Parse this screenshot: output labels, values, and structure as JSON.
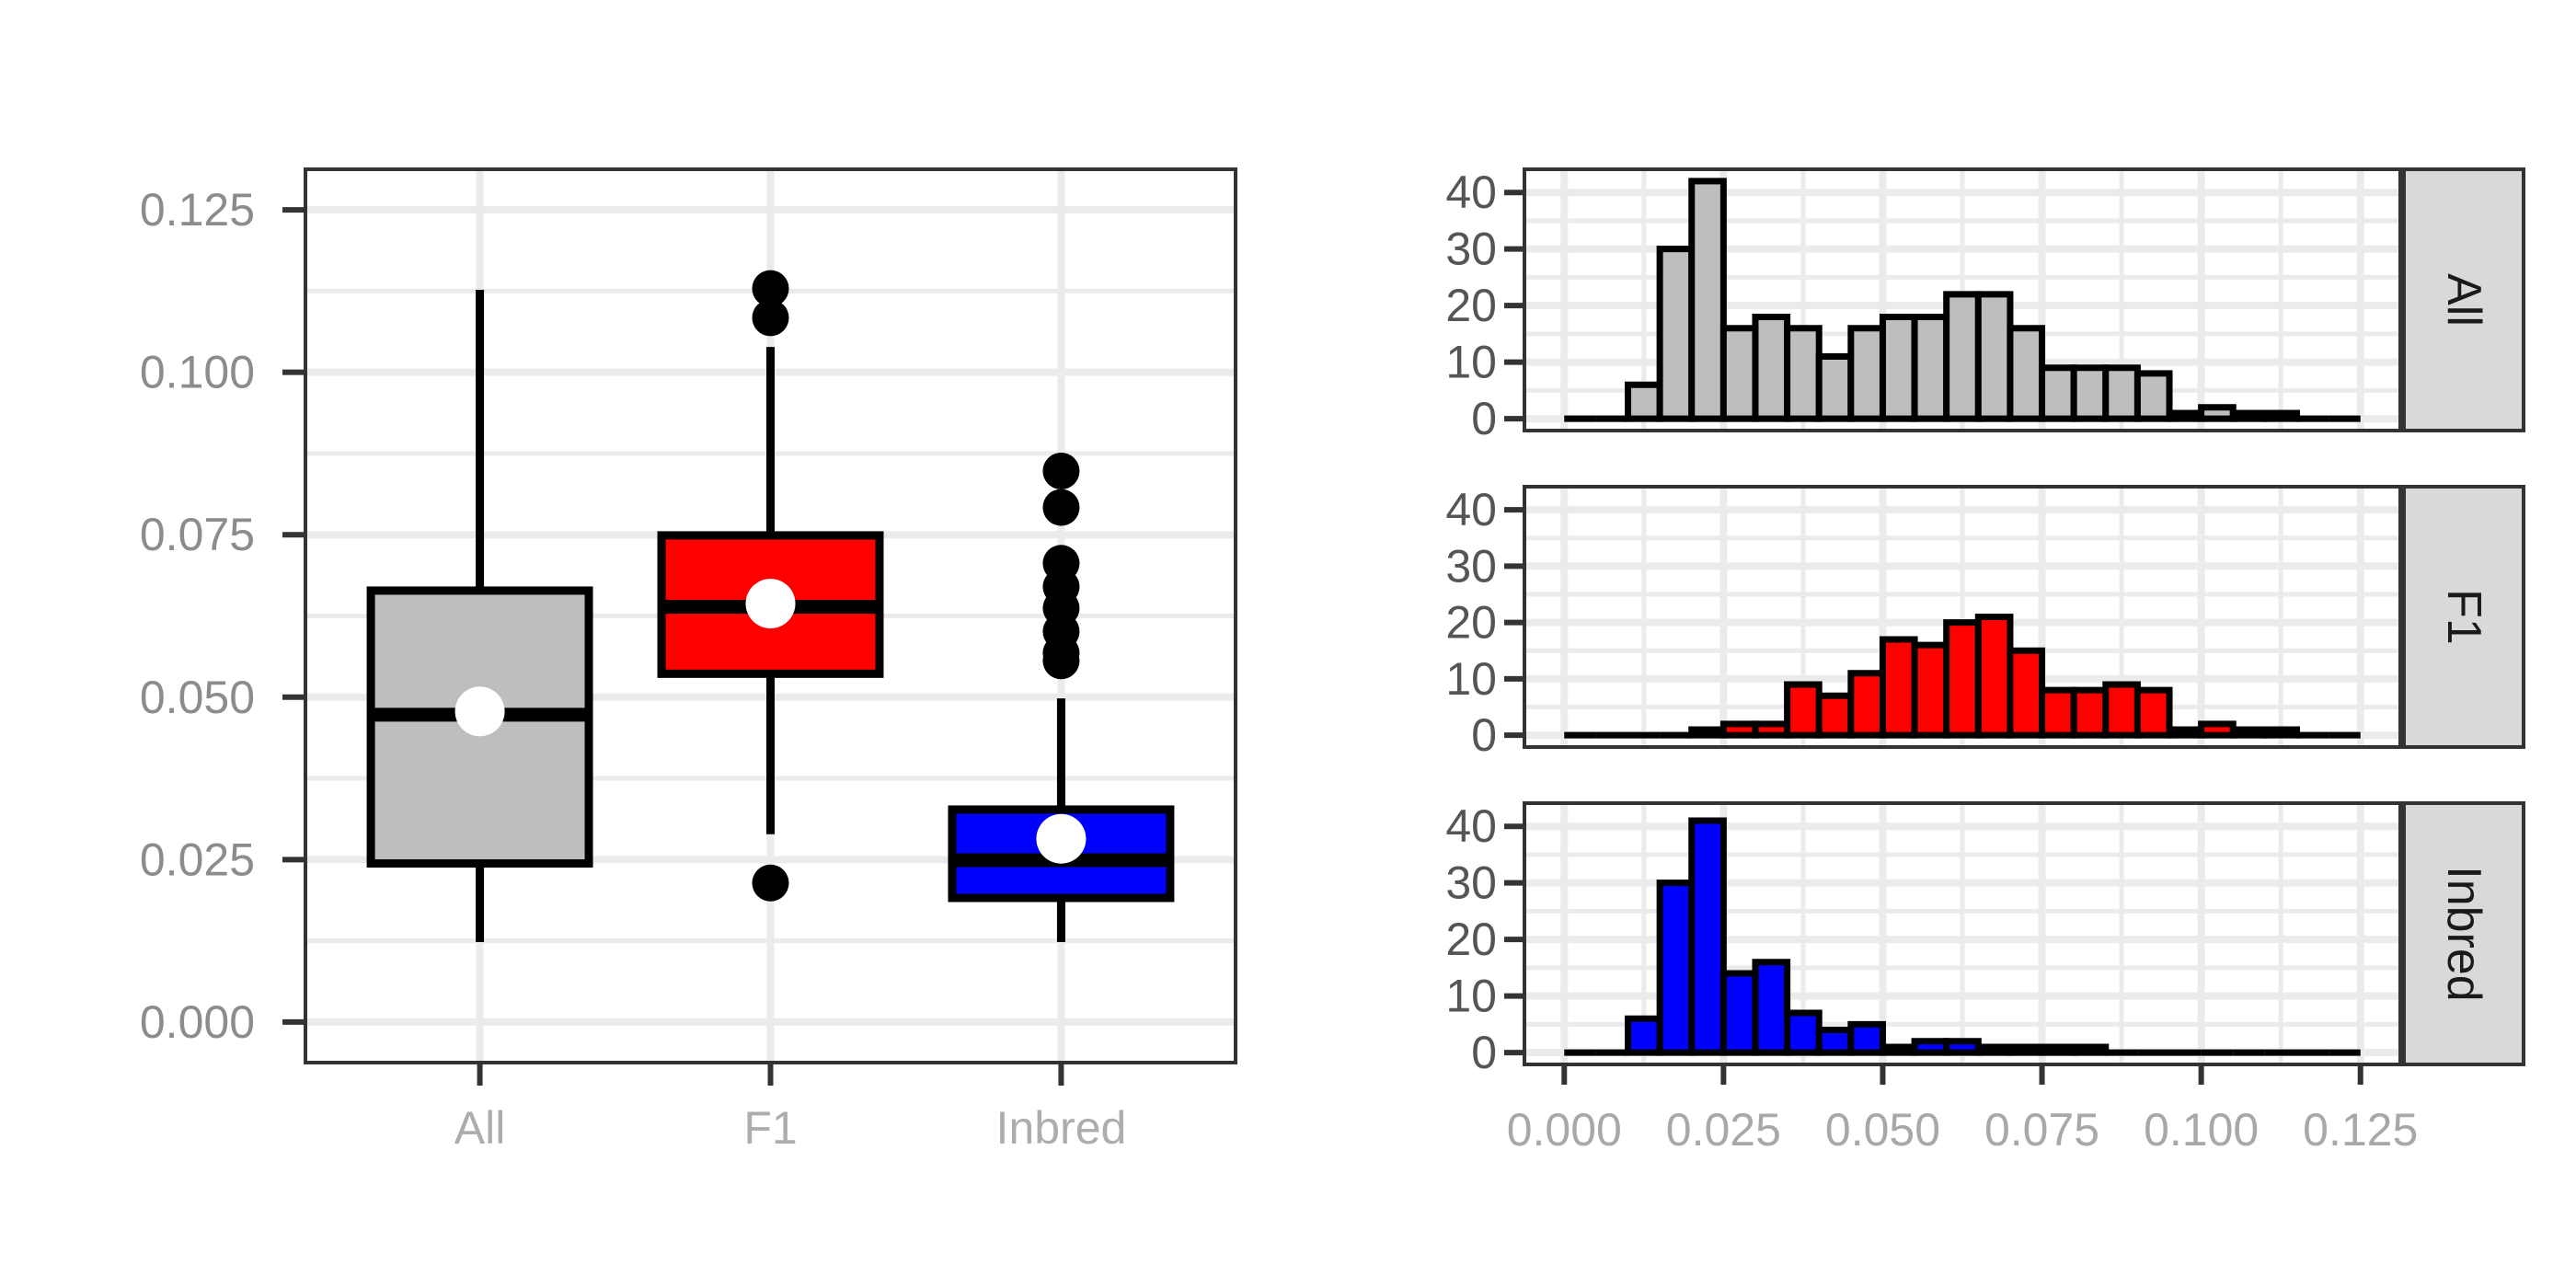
{
  "chart_data": [
    {
      "type": "boxplot",
      "categories": [
        "All",
        "F1",
        "Inbred"
      ],
      "yticks": [
        "0.000",
        "0.025",
        "0.050",
        "0.075",
        "0.100",
        "0.125"
      ],
      "ylim": [
        -0.00625,
        0.13125
      ],
      "grid": true,
      "boxes": [
        {
          "color": "#BEBEBE",
          "whisker_low": 0.0123,
          "q1": 0.0244,
          "median": 0.0473,
          "q3": 0.0664,
          "whisker_high": 0.1127,
          "mean": 0.0478,
          "outliers": []
        },
        {
          "color": "#FF0000",
          "whisker_low": 0.0289,
          "q1": 0.0536,
          "median": 0.0639,
          "q3": 0.0749,
          "whisker_high": 0.1039,
          "mean": 0.0644,
          "outliers": [
            0.1129,
            0.1084,
            0.0214
          ]
        },
        {
          "color": "#0000FF",
          "whisker_low": 0.0123,
          "q1": 0.0191,
          "median": 0.0249,
          "q3": 0.0327,
          "whisker_high": 0.0498,
          "mean": 0.0282,
          "outliers": [
            0.0848,
            0.0792,
            0.0706,
            0.067,
            0.0637,
            0.0601,
            0.0568,
            0.0556
          ]
        }
      ]
    },
    {
      "type": "histogram",
      "bin_start": 0.0,
      "bin_width": 0.005,
      "xticks": [
        "0.000",
        "0.025",
        "0.050",
        "0.075",
        "0.100",
        "0.125"
      ],
      "yticks": [
        "0",
        "10",
        "20",
        "30",
        "40"
      ],
      "xlim": [
        -0.00625,
        0.13125
      ],
      "ylim": [
        -2.1,
        44.1
      ],
      "grid": true,
      "facets": [
        {
          "label": "All",
          "color": "#BEBEBE",
          "counts": [
            0,
            0,
            6,
            30,
            42,
            16,
            18,
            16,
            11,
            16,
            18,
            18,
            22,
            22,
            16,
            9,
            9,
            9,
            8,
            1,
            2,
            1,
            1,
            0,
            0
          ]
        },
        {
          "label": "F1",
          "color": "#FF0000",
          "counts": [
            0,
            0,
            0,
            0,
            1,
            2,
            2,
            9,
            7,
            11,
            17,
            16,
            20,
            21,
            15,
            8,
            8,
            9,
            8,
            1,
            2,
            1,
            1,
            0,
            0
          ]
        },
        {
          "label": "Inbred",
          "color": "#0000FF",
          "counts": [
            0,
            0,
            6,
            30,
            41,
            14,
            16,
            7,
            4,
            5,
            1,
            2,
            2,
            1,
            1,
            1,
            1,
            0,
            0,
            0,
            0,
            0,
            0,
            0,
            0
          ]
        }
      ]
    }
  ]
}
